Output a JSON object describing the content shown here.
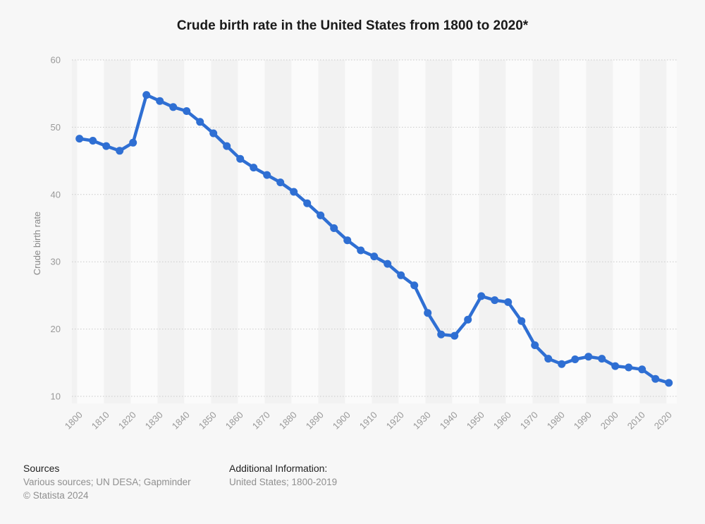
{
  "title": "Crude birth rate in the United States from 1800 to 2020*",
  "chart_data": {
    "type": "line",
    "title": "Crude birth rate in the United States from 1800 to 2020*",
    "xlabel": "",
    "ylabel": "Crude birth rate",
    "series_name": "Crude birth rate",
    "x": [
      1800,
      1805,
      1810,
      1815,
      1820,
      1825,
      1830,
      1835,
      1840,
      1845,
      1850,
      1855,
      1860,
      1865,
      1870,
      1875,
      1880,
      1885,
      1890,
      1895,
      1900,
      1905,
      1910,
      1915,
      1920,
      1925,
      1930,
      1935,
      1940,
      1945,
      1950,
      1955,
      1960,
      1965,
      1970,
      1975,
      1980,
      1985,
      1990,
      1995,
      2000,
      2005,
      2010,
      2015,
      2020
    ],
    "values": [
      48.3,
      48.0,
      47.2,
      46.5,
      47.7,
      54.8,
      53.9,
      53.0,
      52.4,
      50.8,
      49.1,
      47.2,
      45.3,
      44.0,
      42.9,
      41.8,
      40.4,
      38.7,
      36.9,
      35.0,
      33.2,
      31.7,
      30.8,
      29.7,
      28.0,
      26.5,
      22.4,
      19.2,
      19.0,
      21.4,
      24.9,
      24.3,
      24.0,
      21.2,
      17.6,
      15.6,
      14.8,
      15.5,
      15.9,
      15.6,
      14.5,
      14.3,
      14.0,
      12.6,
      12.0
    ],
    "x_tick_labels": [
      "1800",
      "1810",
      "1820",
      "1830",
      "1840",
      "1850",
      "1860",
      "1870",
      "1880",
      "1890",
      "1900",
      "1910",
      "1920",
      "1930",
      "1940",
      "1950",
      "1960",
      "1970",
      "1980",
      "1990",
      "2000",
      "2010",
      "2020"
    ],
    "y_ticks": [
      10,
      20,
      30,
      40,
      50,
      60
    ],
    "ylim": [
      10,
      60
    ],
    "xlim": [
      1800,
      2020
    ],
    "grid": "horizontal-dotted",
    "legend": "none",
    "colors": {
      "line": "#2f6fd3",
      "marker": "#2f6fd3",
      "grid": "#c9c9c9",
      "tick_text": "#999999",
      "axis_title_text": "#888888",
      "title_text": "#1a1a1a",
      "background": "#f7f7f7",
      "stripe_light": "#fbfbfb",
      "stripe_dark": "#f2f2f2"
    }
  },
  "footer": {
    "sources_label": "Sources",
    "sources_text": "Various sources; UN DESA; Gapminder",
    "copyright": "© Statista 2024",
    "additional_label": "Additional Information:",
    "additional_text": "United States; 1800-2019"
  }
}
